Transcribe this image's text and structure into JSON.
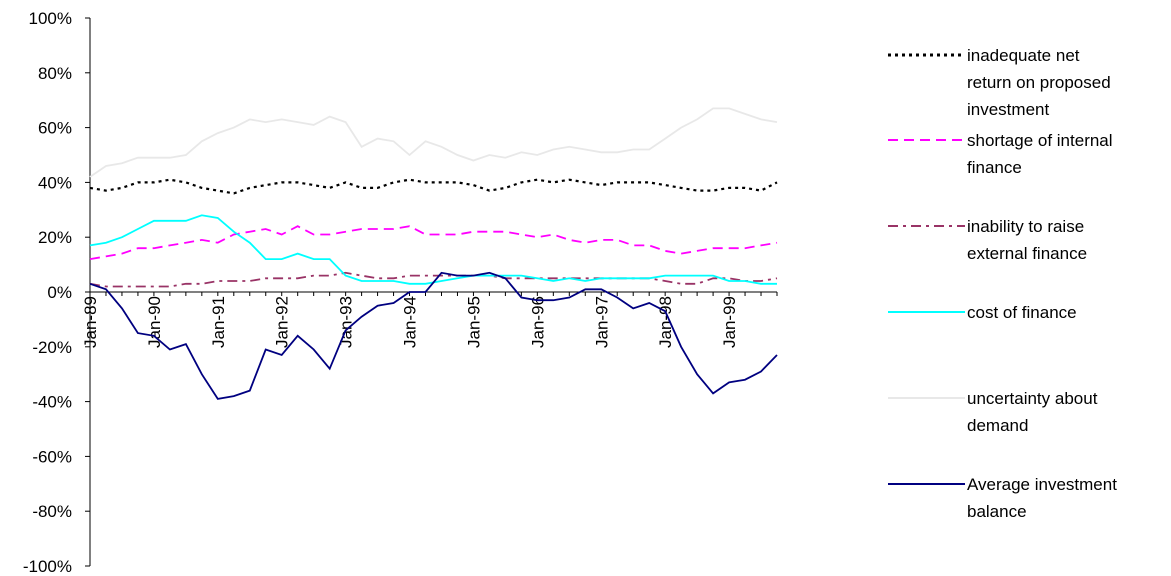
{
  "chart_data": {
    "type": "line",
    "title": "",
    "xlabel": "",
    "ylabel": "",
    "ylim": [
      -100,
      100
    ],
    "y_unit": "%",
    "y_ticks": [
      100,
      80,
      60,
      40,
      20,
      0,
      -20,
      -40,
      -60,
      -80,
      -100
    ],
    "y_tick_labels": [
      "100%",
      "80%",
      "60%",
      "40%",
      "20%",
      "0%",
      "-20%",
      "-40%",
      "-60%",
      "-80%",
      "-100%"
    ],
    "grid": false,
    "legend_position": "right",
    "x_tick_labels": [
      "Jan-89",
      "Jan-90",
      "Jan-91",
      "Jan-92",
      "Jan-93",
      "Jan-94",
      "Jan-95",
      "Jan-96",
      "Jan-97",
      "Jan-98",
      "Jan-99"
    ],
    "x": [
      "1989-01",
      "1989-04",
      "1989-07",
      "1989-10",
      "1990-01",
      "1990-04",
      "1990-07",
      "1990-10",
      "1991-01",
      "1991-04",
      "1991-07",
      "1991-10",
      "1992-01",
      "1992-04",
      "1992-07",
      "1992-10",
      "1993-01",
      "1993-04",
      "1993-07",
      "1993-10",
      "1994-01",
      "1994-04",
      "1994-07",
      "1994-10",
      "1995-01",
      "1995-04",
      "1995-07",
      "1995-10",
      "1996-01",
      "1996-04",
      "1996-07",
      "1996-10",
      "1997-01",
      "1997-04",
      "1997-07",
      "1997-10",
      "1998-01",
      "1998-04",
      "1998-07",
      "1998-10",
      "1999-01",
      "1999-04",
      "1999-07",
      "1999-10"
    ],
    "series": [
      {
        "name": "inadequate net return on proposed investment",
        "color": "#000000",
        "style": "dotted",
        "values": [
          38,
          37,
          38,
          40,
          40,
          41,
          40,
          38,
          37,
          36,
          38,
          39,
          40,
          40,
          39,
          38,
          40,
          38,
          38,
          40,
          41,
          40,
          40,
          40,
          39,
          37,
          38,
          40,
          41,
          40,
          41,
          40,
          39,
          40,
          40,
          40,
          39,
          38,
          37,
          37,
          38,
          38,
          37,
          40
        ]
      },
      {
        "name": "shortage of internal finance",
        "color": "#ff00ff",
        "style": "dashed",
        "values": [
          12,
          13,
          14,
          16,
          16,
          17,
          18,
          19,
          18,
          21,
          22,
          23,
          21,
          24,
          21,
          21,
          22,
          23,
          23,
          23,
          24,
          21,
          21,
          21,
          22,
          22,
          22,
          21,
          20,
          21,
          19,
          18,
          19,
          19,
          17,
          17,
          15,
          14,
          15,
          16,
          16,
          16,
          17,
          18
        ]
      },
      {
        "name": "inability to raise external finance",
        "color": "#993366",
        "style": "dashdot",
        "values": [
          3,
          2,
          2,
          2,
          2,
          2,
          3,
          3,
          4,
          4,
          4,
          5,
          5,
          5,
          6,
          6,
          7,
          6,
          5,
          5,
          6,
          6,
          6,
          6,
          6,
          6,
          5,
          5,
          5,
          5,
          5,
          5,
          5,
          5,
          5,
          5,
          4,
          3,
          3,
          5,
          5,
          4,
          4,
          5
        ]
      },
      {
        "name": "cost of finance",
        "color": "#00ffff",
        "style": "solid",
        "values": [
          17,
          18,
          20,
          23,
          26,
          26,
          26,
          28,
          27,
          22,
          18,
          12,
          12,
          14,
          12,
          12,
          6,
          4,
          4,
          4,
          3,
          3,
          4,
          5,
          6,
          6,
          6,
          6,
          5,
          4,
          5,
          4,
          5,
          5,
          5,
          5,
          6,
          6,
          6,
          6,
          4,
          4,
          3,
          3
        ]
      },
      {
        "name": "uncertainty about demand",
        "color": "#e8e8e8",
        "style": "solid",
        "values": [
          42,
          46,
          47,
          49,
          49,
          49,
          50,
          55,
          58,
          60,
          63,
          62,
          63,
          62,
          61,
          64,
          62,
          53,
          56,
          55,
          50,
          55,
          53,
          50,
          48,
          50,
          49,
          51,
          50,
          52,
          53,
          52,
          51,
          51,
          52,
          52,
          56,
          60,
          63,
          67,
          67,
          65,
          63,
          62
        ]
      },
      {
        "name": "Average investment balance",
        "color": "#000080",
        "style": "solid",
        "values": [
          3,
          1,
          -6,
          -15,
          -16,
          -21,
          -19,
          -30,
          -39,
          -38,
          -36,
          -21,
          -23,
          -16,
          -21,
          -28,
          -14,
          -9,
          -5,
          -4,
          0,
          0,
          7,
          6,
          6,
          7,
          5,
          -2,
          -3,
          -3,
          -2,
          1,
          1,
          -2,
          -6,
          -4,
          -7,
          -20,
          -30,
          -37,
          -33,
          -32,
          -29,
          -23
        ]
      }
    ]
  },
  "legend": {
    "entries": [
      [
        "inadequate net",
        "return on proposed",
        "investment"
      ],
      [
        "shortage of internal",
        "finance"
      ],
      [
        "inability to raise",
        "external finance"
      ],
      [
        "cost of finance"
      ],
      [
        "uncertainty about",
        "demand"
      ],
      [
        "Average investment",
        "balance"
      ]
    ]
  }
}
